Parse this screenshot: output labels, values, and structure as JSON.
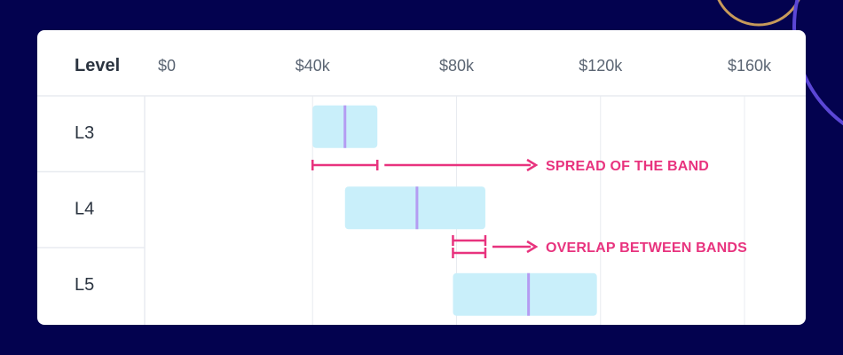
{
  "colors": {
    "background": "#03024f",
    "card": "#ffffff",
    "band_fill": "#c9effa",
    "band_median": "#b49cf2",
    "annotation": "#e8337e",
    "gridline": "#e8ebf0",
    "decor_ring_gold": "#c79a5a",
    "decor_ring_purple": "#5b47d6"
  },
  "chart_data": {
    "type": "range-bar",
    "header_label": "Level",
    "x_ticks": [
      {
        "value": 0,
        "label": "$0"
      },
      {
        "value": 40000,
        "label": "$40k"
      },
      {
        "value": 80000,
        "label": "$80k"
      },
      {
        "value": 120000,
        "label": "$120k"
      },
      {
        "value": 160000,
        "label": "$160k"
      }
    ],
    "xlim": [
      0,
      160000
    ],
    "grid": true,
    "bands": [
      {
        "level": "L3",
        "min": 40000,
        "median": 49000,
        "max": 58000
      },
      {
        "level": "L4",
        "min": 49000,
        "median": 69000,
        "max": 88000
      },
      {
        "level": "L5",
        "min": 79000,
        "median": 100000,
        "max": 119000
      }
    ],
    "annotations": [
      {
        "text": "SPREAD OF THE BAND",
        "level": "L3",
        "from": 40000,
        "to": 58000
      },
      {
        "text": "OVERLAP BETWEEN BANDS",
        "between": [
          "L4",
          "L5"
        ],
        "from": 79000,
        "to": 88000
      }
    ]
  }
}
